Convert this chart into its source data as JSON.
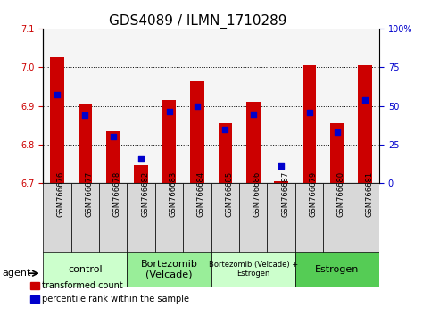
{
  "title": "GDS4089 / ILMN_1710289",
  "samples": [
    "GSM766676",
    "GSM766677",
    "GSM766678",
    "GSM766682",
    "GSM766683",
    "GSM766684",
    "GSM766685",
    "GSM766686",
    "GSM766687",
    "GSM766679",
    "GSM766680",
    "GSM766681"
  ],
  "red_values": [
    7.025,
    6.905,
    6.835,
    6.748,
    6.915,
    6.963,
    6.855,
    6.91,
    6.705,
    7.005,
    6.855,
    7.005
  ],
  "blue_values": [
    6.93,
    6.875,
    6.82,
    6.762,
    6.885,
    6.9,
    6.84,
    6.878,
    6.745,
    6.882,
    6.832,
    6.916
  ],
  "ylim_left": [
    6.7,
    7.1
  ],
  "ylim_right": [
    0,
    100
  ],
  "right_ticks": [
    0,
    25,
    50,
    75,
    100
  ],
  "right_tick_labels": [
    "0",
    "25",
    "50",
    "75",
    "100%"
  ],
  "left_ticks": [
    6.7,
    6.8,
    6.9,
    7.0,
    7.1
  ],
  "groups": [
    {
      "label": "control",
      "start": 0,
      "end": 3,
      "color": "#ccffcc"
    },
    {
      "label": "Bortezomib\n(Velcade)",
      "start": 3,
      "end": 6,
      "color": "#99ff99"
    },
    {
      "label": "Bortezomib (Velcade) +\nEstrogen",
      "start": 6,
      "end": 9,
      "color": "#ccffcc"
    },
    {
      "label": "Estrogen",
      "start": 9,
      "end": 12,
      "color": "#66dd66"
    }
  ],
  "bar_color": "#cc0000",
  "dot_color": "#0000cc",
  "bar_width": 0.5,
  "dot_size": 25,
  "background_color": "#ffffff",
  "title_fontsize": 11,
  "tick_fontsize": 7,
  "agent_label": "agent",
  "legend_red": "transformed count",
  "legend_blue": "percentile rank within the sample"
}
